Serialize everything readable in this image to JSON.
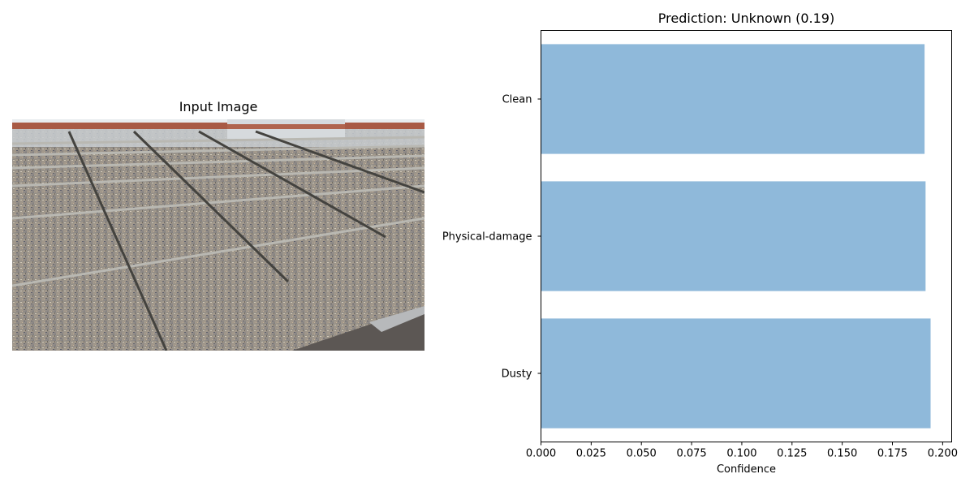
{
  "left_panel": {
    "title": "Input Image"
  },
  "chart_data": {
    "type": "bar",
    "orientation": "horizontal",
    "title": "Prediction: Unknown (0.19)",
    "xlabel": "Confidence",
    "ylabel": "",
    "categories": [
      "Clean",
      "Physical-damage",
      "Dusty"
    ],
    "values": [
      0.191,
      0.1915,
      0.194
    ],
    "xlim": [
      0,
      0.2045
    ],
    "xticks": [
      0.0,
      0.025,
      0.05,
      0.075,
      0.1,
      0.125,
      0.15,
      0.175,
      0.2
    ],
    "xtick_labels": [
      "0.000",
      "0.025",
      "0.050",
      "0.075",
      "0.100",
      "0.125",
      "0.150",
      "0.175",
      "0.200"
    ],
    "bar_color": "#8fb9da",
    "grid": false
  }
}
